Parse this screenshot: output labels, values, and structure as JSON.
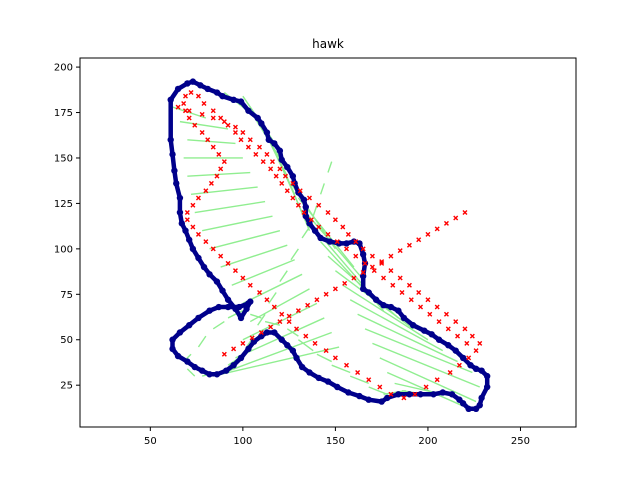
{
  "chart_data": {
    "type": "scatter",
    "title": "hawk",
    "xlabel": "",
    "ylabel": "",
    "xlim": [
      12,
      280
    ],
    "ylim": [
      2,
      205
    ],
    "xticks": [
      50,
      100,
      150,
      200,
      250
    ],
    "yticks": [
      25,
      50,
      75,
      100,
      125,
      150,
      175,
      200
    ],
    "xtick_labels": [
      "50",
      "100",
      "150",
      "200",
      "250"
    ],
    "ytick_labels": [
      "25",
      "50",
      "75",
      "100",
      "125",
      "150",
      "175",
      "200"
    ],
    "grid": false,
    "legend": "none",
    "colors": {
      "outline": "#00008b",
      "skeleton": "#90ee90",
      "points": "#ff0000"
    },
    "series": [
      {
        "role": "outline",
        "x": [
          61,
          65,
          70,
          73,
          77,
          81,
          86,
          89,
          95,
          99,
          103,
          108,
          110,
          113,
          114,
          117,
          120,
          121,
          124,
          127,
          128,
          130,
          133,
          134,
          134,
          136,
          139,
          142,
          147,
          152,
          156,
          160,
          163,
          165,
          166,
          165,
          165,
          168,
          172,
          176,
          180,
          184,
          187,
          192,
          198,
          202,
          206,
          211,
          215,
          219,
          223,
          226,
          229,
          232,
          232,
          229,
          228,
          226,
          222,
          219,
          217,
          213,
          208,
          203,
          196,
          190,
          184,
          178,
          175,
          168,
          163,
          157,
          151,
          146,
          141,
          136,
          132,
          129,
          127,
          124,
          121,
          117,
          113,
          110,
          106,
          103,
          99,
          95,
          91,
          86,
          82,
          78,
          74,
          70,
          65,
          62,
          62,
          66,
          71,
          76,
          82,
          87,
          92,
          98,
          103,
          104,
          102,
          99,
          96,
          92,
          89,
          86,
          82,
          79,
          76,
          73,
          71,
          69,
          67,
          66,
          66,
          64,
          63,
          62,
          61
        ],
        "y": [
          182,
          188,
          191,
          192,
          190,
          188,
          186,
          184,
          182,
          181,
          176,
          172,
          169,
          164,
          160,
          158,
          154,
          149,
          145,
          140,
          136,
          131,
          127,
          123,
          118,
          114,
          110,
          106,
          104,
          103,
          103,
          104,
          103,
          97,
          92,
          85,
          78,
          76,
          72,
          69,
          68,
          66,
          62,
          58,
          55,
          53,
          50,
          47,
          44,
          40,
          36,
          34,
          33,
          30,
          24,
          18,
          14,
          12,
          12,
          15,
          17,
          20,
          21,
          20,
          20,
          20,
          20,
          18,
          16,
          17,
          19,
          21,
          24,
          27,
          29,
          32,
          35,
          40,
          44,
          47,
          50,
          54,
          54,
          52,
          49,
          45,
          40,
          36,
          33,
          31,
          31,
          33,
          35,
          38,
          41,
          45,
          50,
          54,
          58,
          62,
          66,
          68,
          68,
          68,
          70,
          71,
          67,
          62,
          67,
          72,
          77,
          82,
          86,
          90,
          95,
          100,
          105,
          110,
          114,
          120,
          128,
          136,
          143,
          152,
          160
        ]
      },
      {
        "role": "skeleton-points",
        "x": [
          65,
          71,
          78,
          84,
          90,
          96,
          100,
          104,
          109,
          113,
          116,
          120,
          123,
          127,
          131,
          136,
          141,
          146,
          150,
          154,
          157,
          161,
          165,
          170,
          175,
          180,
          185,
          190,
          195,
          200,
          205,
          210,
          215,
          220,
          224,
          228,
          226,
          222,
          217,
          212,
          205,
          199,
          193,
          187,
          180,
          174,
          168,
          162,
          156,
          150,
          145,
          139,
          134,
          129,
          125,
          121,
          117,
          113,
          109,
          104,
          100,
          96,
          92,
          88,
          84,
          80,
          76,
          73,
          70,
          70,
          73,
          76,
          80,
          83,
          86,
          88,
          90,
          87,
          84,
          81,
          78,
          74,
          71,
          69,
          68,
          69,
          72,
          76,
          79,
          84,
          88,
          92,
          96,
          99,
          103,
          107,
          111,
          115,
          118,
          121,
          124,
          127,
          130,
          133,
          137,
          141,
          146,
          151,
          156,
          161,
          166,
          171,
          176,
          181,
          186,
          191,
          196,
          201,
          206,
          211,
          216,
          221,
          90,
          95,
          100,
          105,
          110,
          115,
          120,
          125,
          130,
          135,
          140,
          145,
          150,
          155,
          160,
          165,
          170,
          175,
          180,
          185,
          190,
          195,
          200,
          205,
          210,
          215,
          220
        ],
        "y": [
          178,
          176,
          174,
          172,
          170,
          167,
          164,
          160,
          156,
          152,
          148,
          144,
          140,
          136,
          132,
          128,
          124,
          120,
          116,
          112,
          108,
          104,
          100,
          96,
          92,
          88,
          84,
          80,
          76,
          72,
          68,
          64,
          60,
          56,
          52,
          48,
          44,
          40,
          36,
          32,
          28,
          24,
          20,
          18,
          20,
          24,
          28,
          32,
          36,
          40,
          44,
          48,
          52,
          56,
          60,
          64,
          68,
          72,
          76,
          80,
          84,
          88,
          92,
          96,
          100,
          104,
          108,
          112,
          116,
          120,
          124,
          128,
          132,
          136,
          140,
          144,
          148,
          152,
          156,
          160,
          164,
          168,
          172,
          176,
          180,
          184,
          186,
          184,
          180,
          176,
          172,
          168,
          164,
          160,
          156,
          152,
          148,
          144,
          140,
          136,
          132,
          128,
          124,
          120,
          116,
          112,
          108,
          104,
          100,
          96,
          92,
          88,
          84,
          80,
          76,
          72,
          68,
          64,
          60,
          56,
          52,
          48,
          42,
          45,
          48,
          51,
          54,
          57,
          60,
          63,
          66,
          69,
          72,
          75,
          78,
          81,
          84,
          87,
          90,
          93,
          96,
          99,
          102,
          105,
          108,
          111,
          114,
          117,
          120
        ]
      }
    ],
    "skeleton_links": [
      [
        [
          62,
          178
        ],
        [
          80,
          172
        ]
      ],
      [
        [
          66,
          170
        ],
        [
          92,
          166
        ]
      ],
      [
        [
          70,
          160
        ],
        [
          96,
          158
        ]
      ],
      [
        [
          68,
          150
        ],
        [
          100,
          150
        ]
      ],
      [
        [
          70,
          140
        ],
        [
          104,
          142
        ]
      ],
      [
        [
          72,
          130
        ],
        [
          108,
          134
        ]
      ],
      [
        [
          74,
          120
        ],
        [
          112,
          126
        ]
      ],
      [
        [
          78,
          110
        ],
        [
          116,
          118
        ]
      ],
      [
        [
          82,
          100
        ],
        [
          120,
          110
        ]
      ],
      [
        [
          88,
          90
        ],
        [
          124,
          102
        ]
      ],
      [
        [
          94,
          80
        ],
        [
          128,
          94
        ]
      ],
      [
        [
          100,
          70
        ],
        [
          132,
          86
        ]
      ],
      [
        [
          104,
          60
        ],
        [
          136,
          78
        ]
      ],
      [
        [
          100,
          50
        ],
        [
          140,
          70
        ]
      ],
      [
        [
          96,
          40
        ],
        [
          144,
          62
        ]
      ],
      [
        [
          90,
          32
        ],
        [
          148,
          54
        ]
      ],
      [
        [
          84,
          30
        ],
        [
          152,
          46
        ]
      ],
      [
        [
          110,
          170
        ],
        [
          90,
          186
        ]
      ],
      [
        [
          116,
          160
        ],
        [
          100,
          184
        ]
      ],
      [
        [
          120,
          150
        ],
        [
          104,
          176
        ]
      ],
      [
        [
          124,
          140
        ],
        [
          110,
          168
        ]
      ],
      [
        [
          128,
          130
        ],
        [
          114,
          160
        ]
      ],
      [
        [
          132,
          120
        ],
        [
          118,
          152
        ]
      ],
      [
        [
          136,
          110
        ],
        [
          122,
          144
        ]
      ],
      [
        [
          150,
          100
        ],
        [
          126,
          136
        ]
      ],
      [
        [
          160,
          90
        ],
        [
          130,
          128
        ]
      ],
      [
        [
          166,
          82
        ],
        [
          134,
          120
        ]
      ],
      [
        [
          170,
          74
        ],
        [
          138,
          112
        ]
      ],
      [
        [
          176,
          66
        ],
        [
          142,
          104
        ]
      ],
      [
        [
          184,
          62
        ],
        [
          146,
          96
        ]
      ],
      [
        [
          192,
          56
        ],
        [
          150,
          88
        ]
      ],
      [
        [
          200,
          50
        ],
        [
          154,
          80
        ]
      ],
      [
        [
          208,
          44
        ],
        [
          158,
          72
        ]
      ],
      [
        [
          216,
          38
        ],
        [
          162,
          64
        ]
      ],
      [
        [
          224,
          32
        ],
        [
          166,
          56
        ]
      ],
      [
        [
          228,
          24
        ],
        [
          170,
          48
        ]
      ],
      [
        [
          226,
          16
        ],
        [
          174,
          40
        ]
      ],
      [
        [
          218,
          14
        ],
        [
          178,
          32
        ]
      ],
      [
        [
          208,
          20
        ],
        [
          182,
          26
        ]
      ],
      [
        [
          198,
          20
        ],
        [
          186,
          22
        ]
      ],
      [
        [
          188,
          22
        ],
        [
          176,
          20
        ]
      ],
      [
        [
          178,
          20
        ],
        [
          168,
          24
        ]
      ],
      [
        [
          168,
          26
        ],
        [
          158,
          30
        ]
      ],
      [
        [
          158,
          32
        ],
        [
          148,
          36
        ]
      ],
      [
        [
          148,
          38
        ],
        [
          140,
          42
        ]
      ],
      [
        [
          138,
          44
        ],
        [
          130,
          50
        ]
      ],
      [
        [
          130,
          52
        ],
        [
          124,
          56
        ]
      ],
      [
        [
          120,
          58
        ],
        [
          112,
          60
        ]
      ],
      [
        [
          110,
          62
        ],
        [
          104,
          64
        ]
      ],
      [
        [
          100,
          66
        ],
        [
          92,
          62
        ]
      ],
      [
        [
          90,
          60
        ],
        [
          84,
          56
        ]
      ],
      [
        [
          80,
          52
        ],
        [
          76,
          46
        ]
      ],
      [
        [
          72,
          42
        ],
        [
          68,
          38
        ]
      ],
      [
        [
          70,
          34
        ],
        [
          74,
          30
        ]
      ],
      [
        [
          78,
          30
        ],
        [
          86,
          32
        ]
      ],
      [
        [
          92,
          36
        ],
        [
          98,
          40
        ]
      ],
      [
        [
          102,
          46
        ],
        [
          106,
          52
        ]
      ],
      [
        [
          108,
          58
        ],
        [
          112,
          64
        ]
      ],
      [
        [
          114,
          70
        ],
        [
          118,
          76
        ]
      ],
      [
        [
          120,
          82
        ],
        [
          124,
          88
        ]
      ],
      [
        [
          126,
          94
        ],
        [
          130,
          100
        ]
      ],
      [
        [
          132,
          106
        ],
        [
          136,
          112
        ]
      ],
      [
        [
          138,
          118
        ],
        [
          140,
          124
        ]
      ],
      [
        [
          142,
          130
        ],
        [
          144,
          136
        ]
      ],
      [
        [
          146,
          142
        ],
        [
          148,
          148
        ]
      ]
    ]
  }
}
